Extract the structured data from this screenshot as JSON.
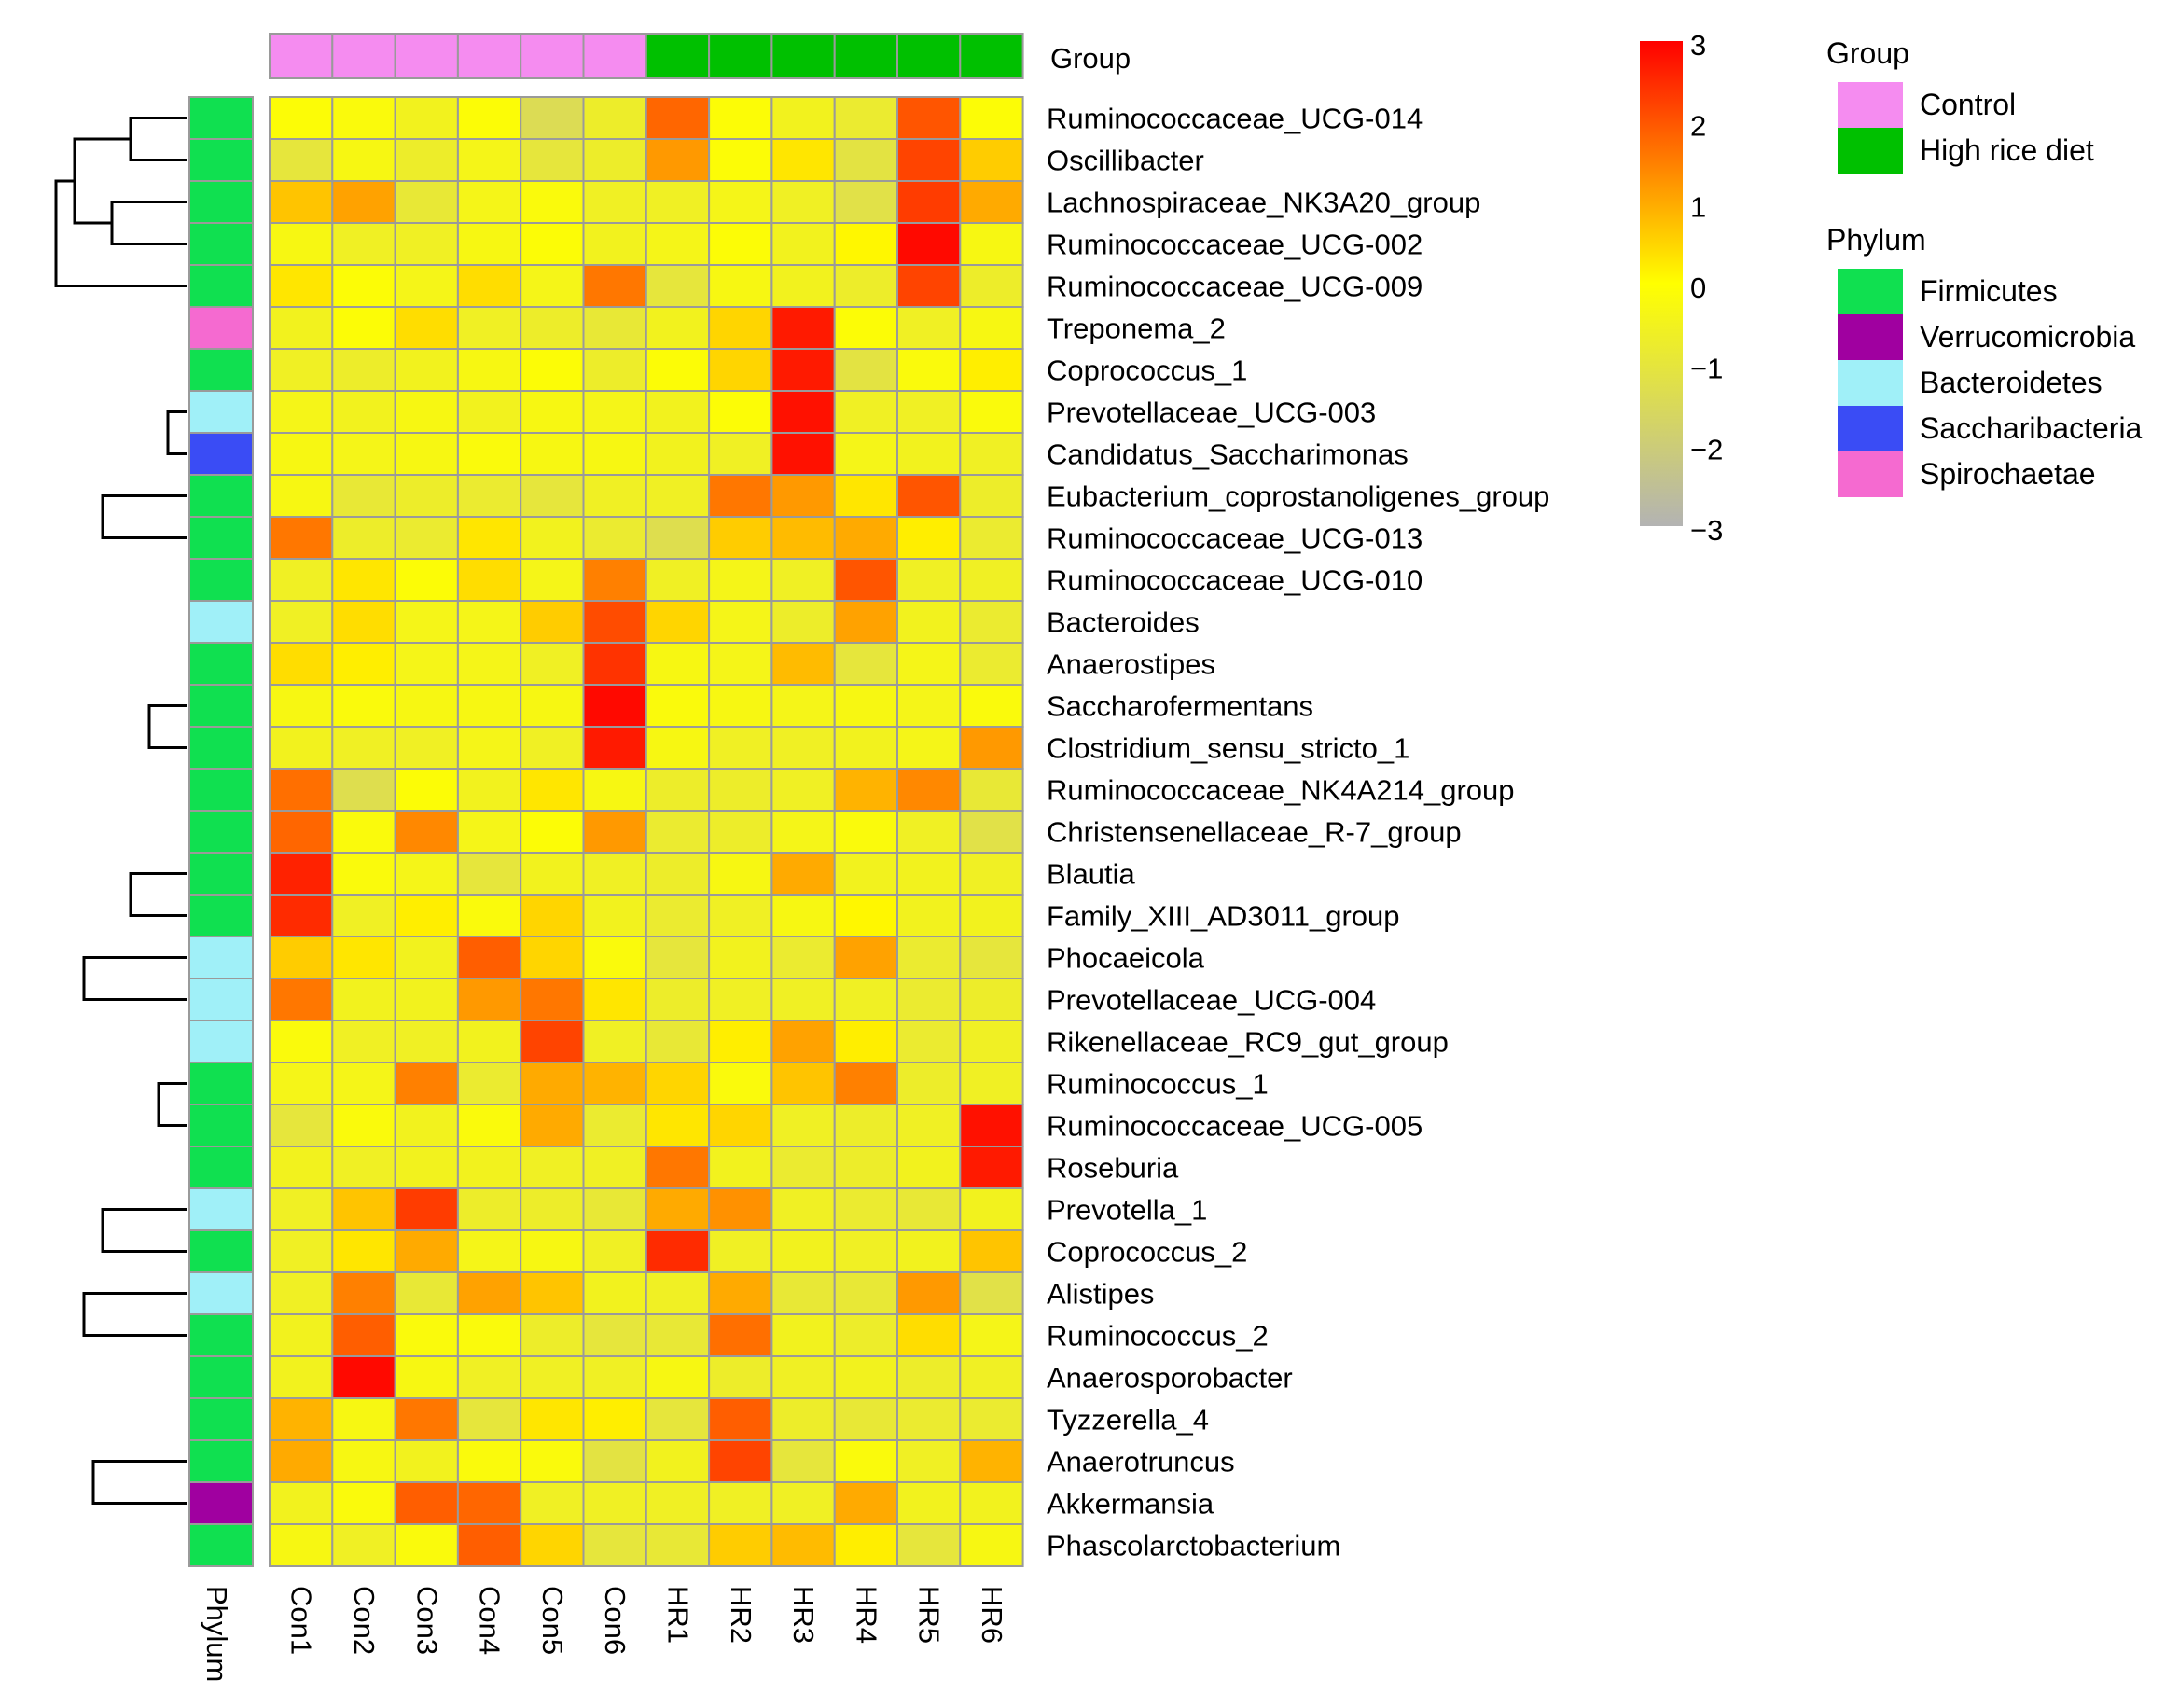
{
  "chart_data": {
    "type": "heatmap",
    "title": "",
    "columns": [
      "Con1",
      "Con2",
      "Con3",
      "Con4",
      "Con5",
      "Con6",
      "HR1",
      "HR2",
      "HR3",
      "HR4",
      "HR5",
      "HR6"
    ],
    "column_groups": [
      "Control",
      "Control",
      "Control",
      "Control",
      "Control",
      "Control",
      "High rice diet",
      "High rice diet",
      "High rice diet",
      "High rice diet",
      "High rice diet",
      "High rice diet"
    ],
    "rows": [
      "Ruminococcaceae_UCG-014",
      "Oscillibacter",
      "Lachnospiraceae_NK3A20_group",
      "Ruminococcaceae_UCG-002",
      "Ruminococcaceae_UCG-009",
      "Treponema_2",
      "Coprococcus_1",
      "Prevotellaceae_UCG-003",
      "Candidatus_Saccharimonas",
      "Eubacterium_coprostanoligenes_group",
      "Ruminococcaceae_UCG-013",
      "Ruminococcaceae_UCG-010",
      "Bacteroides",
      "Anaerostipes",
      "Saccharofermentans",
      "Clostridium_sensu_stricto_1",
      "Ruminococcaceae_NK4A214_group",
      "Christensenellaceae_R-7_group",
      "Blautia",
      "Family_XIII_AD3011_group",
      "Phocaeicola",
      "Prevotellaceae_UCG-004",
      "Rikenellaceae_RC9_gut_group",
      "Ruminococcus_1",
      "Ruminococcaceae_UCG-005",
      "Roseburia",
      "Prevotella_1",
      "Coprococcus_2",
      "Alistipes",
      "Ruminococcus_2",
      "Anaerosporobacter",
      "Tyzzerella_4",
      "Anaerotruncus",
      "Akkermansia",
      "Phascolarctobacterium"
    ],
    "row_phylum": [
      "Firmicutes",
      "Firmicutes",
      "Firmicutes",
      "Firmicutes",
      "Firmicutes",
      "Spirochaetae",
      "Firmicutes",
      "Bacteroidetes",
      "Saccharibacteria",
      "Firmicutes",
      "Firmicutes",
      "Firmicutes",
      "Bacteroidetes",
      "Firmicutes",
      "Firmicutes",
      "Firmicutes",
      "Firmicutes",
      "Firmicutes",
      "Firmicutes",
      "Firmicutes",
      "Bacteroidetes",
      "Bacteroidetes",
      "Bacteroidetes",
      "Firmicutes",
      "Firmicutes",
      "Firmicutes",
      "Bacteroidetes",
      "Firmicutes",
      "Bacteroidetes",
      "Firmicutes",
      "Firmicutes",
      "Firmicutes",
      "Firmicutes",
      "Verrucomicrobia",
      "Firmicutes"
    ],
    "values": [
      [
        -0.1,
        -0.2,
        -0.5,
        -0.1,
        -1.4,
        -0.7,
        1.8,
        -0.1,
        -0.5,
        -0.8,
        2.0,
        -0.1
      ],
      [
        -1.0,
        -0.3,
        -0.7,
        -0.4,
        -1.0,
        -0.7,
        1.2,
        -0.1,
        0.3,
        -1.1,
        2.2,
        0.6
      ],
      [
        0.7,
        1.1,
        -0.9,
        -0.4,
        -0.2,
        -0.6,
        -0.6,
        -0.4,
        -0.6,
        -1.2,
        2.3,
        1.0
      ],
      [
        -0.3,
        -0.6,
        -0.6,
        -0.3,
        -0.1,
        -0.5,
        -0.4,
        -0.1,
        -0.5,
        0.1,
        2.9,
        -0.3
      ],
      [
        0.3,
        -0.1,
        -0.4,
        0.4,
        -0.4,
        1.6,
        -1.0,
        -0.3,
        -0.5,
        -0.7,
        2.2,
        -0.7
      ],
      [
        -0.5,
        -0.1,
        0.4,
        -0.6,
        -0.7,
        -0.9,
        -0.5,
        0.5,
        2.7,
        -0.1,
        -0.6,
        -0.3
      ],
      [
        -0.6,
        -0.7,
        -0.5,
        -0.3,
        -0.1,
        -0.7,
        -0.1,
        0.5,
        2.7,
        -1.1,
        -0.2,
        0.2
      ],
      [
        -0.4,
        -0.5,
        -0.3,
        -0.5,
        -0.3,
        -0.4,
        -0.5,
        -0.1,
        2.8,
        -0.6,
        -0.6,
        -0.2
      ],
      [
        -0.3,
        -0.4,
        -0.3,
        -0.2,
        -0.3,
        -0.3,
        -0.5,
        -0.6,
        2.8,
        -0.4,
        -0.5,
        -0.6
      ],
      [
        -0.3,
        -0.9,
        -0.7,
        -0.8,
        -1.0,
        -0.6,
        -0.6,
        1.6,
        1.2,
        0.3,
        2.0,
        -0.7
      ],
      [
        1.6,
        -0.7,
        -0.8,
        0.3,
        -0.5,
        -0.8,
        -1.3,
        0.6,
        0.8,
        1.0,
        0.2,
        -0.8
      ],
      [
        -0.6,
        0.3,
        -0.1,
        0.4,
        -0.4,
        1.5,
        -0.6,
        -0.4,
        -0.6,
        2.0,
        -0.6,
        -0.6
      ],
      [
        -0.6,
        0.4,
        -0.4,
        -0.4,
        0.6,
        2.1,
        0.5,
        -0.4,
        -0.7,
        1.1,
        -0.5,
        -0.8
      ],
      [
        0.4,
        0.2,
        -0.4,
        -0.4,
        -0.6,
        2.4,
        -0.3,
        -0.4,
        0.8,
        -1.0,
        -0.4,
        -0.8
      ],
      [
        -0.3,
        -0.2,
        -0.3,
        -0.3,
        -0.3,
        2.9,
        -0.2,
        -0.3,
        -0.4,
        -0.3,
        -0.4,
        -0.2
      ],
      [
        -0.5,
        -0.6,
        -0.6,
        -0.4,
        -0.6,
        2.7,
        -0.3,
        -0.6,
        -0.6,
        -0.5,
        -0.4,
        1.2
      ],
      [
        1.7,
        -1.3,
        -0.1,
        -0.5,
        0.3,
        -0.3,
        -0.7,
        -0.7,
        -0.6,
        0.9,
        1.4,
        -0.9
      ],
      [
        1.8,
        -0.2,
        1.4,
        -0.4,
        -0.1,
        1.2,
        -0.8,
        -0.7,
        -0.4,
        -0.2,
        -0.6,
        -1.2
      ],
      [
        2.6,
        -0.2,
        -0.4,
        -1.0,
        -0.5,
        -0.6,
        -0.7,
        -0.3,
        1.0,
        -0.5,
        -0.5,
        -0.6
      ],
      [
        2.5,
        -0.6,
        0.2,
        -0.2,
        0.5,
        -0.5,
        -0.8,
        -0.6,
        -0.3,
        0.1,
        -0.5,
        -0.5
      ],
      [
        0.6,
        0.3,
        -0.5,
        1.9,
        0.5,
        -0.2,
        -1.0,
        -0.5,
        -0.8,
        1.1,
        -0.8,
        -1.0
      ],
      [
        1.6,
        -0.5,
        -0.5,
        1.2,
        1.6,
        0.3,
        -0.7,
        -0.6,
        -0.6,
        -0.6,
        -0.8,
        -0.7
      ],
      [
        -0.2,
        -0.6,
        -0.6,
        -0.5,
        2.2,
        -0.6,
        -0.9,
        0.2,
        1.1,
        0.2,
        -0.8,
        -0.6
      ],
      [
        -0.4,
        -0.4,
        1.5,
        -0.8,
        1.0,
        0.9,
        0.5,
        -0.2,
        0.7,
        1.5,
        -0.7,
        -0.6
      ],
      [
        -1.0,
        -0.2,
        -0.5,
        -0.2,
        1.0,
        -0.8,
        0.3,
        0.5,
        -0.6,
        -0.7,
        -0.6,
        2.8
      ],
      [
        -0.5,
        -0.6,
        -0.5,
        -0.5,
        -0.6,
        -0.6,
        1.6,
        -0.5,
        -0.8,
        -0.7,
        -0.5,
        2.7
      ],
      [
        -0.6,
        0.7,
        2.3,
        -0.7,
        -0.7,
        -0.9,
        1.0,
        1.3,
        -0.6,
        -0.8,
        -0.9,
        -0.5
      ],
      [
        -0.6,
        0.3,
        1.0,
        -0.4,
        -0.3,
        -0.6,
        2.5,
        -0.6,
        -0.5,
        -0.6,
        -0.5,
        0.7
      ],
      [
        -0.6,
        1.5,
        -0.9,
        1.1,
        0.7,
        -0.5,
        -0.6,
        1.0,
        -0.9,
        -0.9,
        1.2,
        -1.2
      ],
      [
        -0.5,
        1.9,
        -0.2,
        -0.2,
        -0.7,
        -1.0,
        -0.9,
        1.7,
        -0.5,
        -0.7,
        0.4,
        -0.4
      ],
      [
        -0.5,
        2.9,
        -0.3,
        -0.6,
        -0.6,
        -0.6,
        -0.3,
        -0.7,
        -0.6,
        -0.5,
        -0.7,
        -0.6
      ],
      [
        0.9,
        -0.3,
        1.6,
        -1.0,
        0.3,
        0.2,
        -1.0,
        1.9,
        -0.7,
        -0.9,
        -0.8,
        -0.8
      ],
      [
        1.0,
        -0.3,
        -0.5,
        -0.2,
        -0.2,
        -1.1,
        -0.5,
        2.2,
        -1.0,
        -0.2,
        -0.6,
        0.9
      ],
      [
        -0.5,
        -0.2,
        1.9,
        1.8,
        -0.6,
        -0.6,
        -0.6,
        -0.6,
        -0.6,
        1.0,
        -0.5,
        -0.5
      ],
      [
        -0.3,
        -0.6,
        -0.2,
        1.9,
        0.5,
        -1.0,
        -0.9,
        0.6,
        0.8,
        0.2,
        -1.0,
        -0.3
      ]
    ],
    "color_scale": {
      "min": -3,
      "max": 3,
      "ticks": [
        3,
        2,
        1,
        0,
        -1,
        -2,
        -3
      ],
      "colors": [
        "#b3b3b3",
        "#ffff00",
        "#ff0000"
      ]
    },
    "column_annotation": {
      "label": "Group"
    },
    "row_annotation": {
      "label": "Phylum"
    },
    "legends": {
      "group": {
        "title": "Group",
        "items": [
          {
            "label": "Control",
            "color": "#f58cf0"
          },
          {
            "label": "High rice diet",
            "color": "#00c000"
          }
        ]
      },
      "phylum": {
        "title": "Phylum",
        "items": [
          {
            "label": "Firmicutes",
            "color": "#10e050"
          },
          {
            "label": "Verrucomicrobia",
            "color": "#a000a0"
          },
          {
            "label": "Bacteroidetes",
            "color": "#a0f0f8"
          },
          {
            "label": "Saccharibacteria",
            "color": "#3a4cf5"
          },
          {
            "label": "Spirochaetae",
            "color": "#f56ad0"
          }
        ]
      }
    },
    "dendrogram": {
      "order": "row",
      "description_text": ""
    }
  }
}
